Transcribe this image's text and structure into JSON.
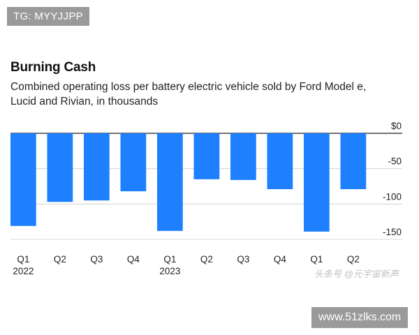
{
  "watermark_top": "TG: MYYJJPP",
  "watermark_mid": "头条号 @元宇宙新声",
  "watermark_bottom": "www.51zlks.com",
  "chart_data": {
    "type": "bar",
    "title": "Burning Cash",
    "subtitle": "Combined operating loss per battery electric vehicle sold by Ford Model e, Lucid and Rivian, in thousands",
    "categories": [
      "Q1",
      "Q2",
      "Q3",
      "Q4",
      "Q1",
      "Q2",
      "Q3",
      "Q4",
      "Q1",
      "Q2"
    ],
    "year_labels": [
      "2022",
      "",
      "",
      "",
      "2023",
      "",
      "",
      "",
      "",
      ""
    ],
    "values": [
      -131,
      -97,
      -95,
      -82,
      -138,
      -65,
      -66,
      -79,
      -139,
      -79
    ],
    "y_ticks": [
      0,
      -50,
      -100,
      -150
    ],
    "y_tick_labels": [
      "$0",
      "-50",
      "-100",
      "-150"
    ],
    "ylim": [
      -150,
      0
    ],
    "axis_position": "right",
    "bar_color": "#1E80FF",
    "xlabel": "",
    "ylabel": ""
  }
}
